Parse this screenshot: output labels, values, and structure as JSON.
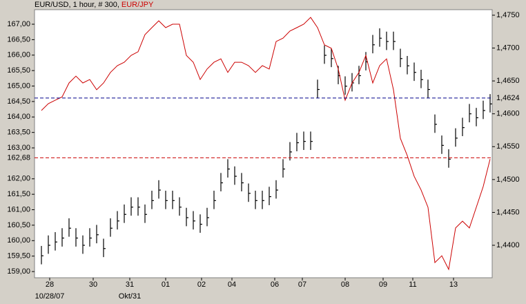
{
  "chart_data": {
    "type": "ohlc-line",
    "period_label": ", 1 hour, # 300,",
    "series": [
      {
        "name": "EUR/USD",
        "color": "#000000",
        "axis": "y2",
        "high": [
          1.4399,
          1.4415,
          1.442,
          1.4426,
          1.4441,
          1.4426,
          1.4415,
          1.4426,
          1.4431,
          1.441,
          1.4441,
          1.4452,
          1.4462,
          1.4473,
          1.4473,
          1.4462,
          1.4483,
          1.4499,
          1.4483,
          1.4483,
          1.4473,
          1.4457,
          1.4452,
          1.4447,
          1.4457,
          1.4483,
          1.451,
          1.4531,
          1.452,
          1.451,
          1.4494,
          1.4483,
          1.4483,
          1.4489,
          1.4499,
          1.4531,
          1.4557,
          1.4571,
          1.4573,
          1.4573,
          1.4652,
          1.4704,
          1.4699,
          1.4673,
          1.4657,
          1.4662,
          1.4673,
          1.4694,
          1.472,
          1.473,
          1.4725,
          1.4725,
          1.4699,
          1.4688,
          1.4678,
          1.4667,
          1.4652,
          1.4599,
          1.4567,
          1.4546,
          1.4578,
          1.4594,
          1.4615,
          1.4609,
          1.462,
          1.463
        ],
        "low": [
          1.4371,
          1.4387,
          1.4392,
          1.4398,
          1.4413,
          1.4398,
          1.4387,
          1.4398,
          1.4403,
          1.4382,
          1.4413,
          1.4424,
          1.4434,
          1.4445,
          1.4445,
          1.4434,
          1.4455,
          1.4471,
          1.4455,
          1.4455,
          1.4445,
          1.4429,
          1.4424,
          1.4419,
          1.4429,
          1.4455,
          1.4482,
          1.4503,
          1.4492,
          1.4482,
          1.4466,
          1.4455,
          1.4455,
          1.4461,
          1.4471,
          1.4503,
          1.4529,
          1.4543,
          1.4545,
          1.4545,
          1.4624,
          1.4676,
          1.4671,
          1.4645,
          1.4629,
          1.4634,
          1.4645,
          1.4666,
          1.4692,
          1.4702,
          1.4697,
          1.4697,
          1.4671,
          1.466,
          1.465,
          1.4639,
          1.4624,
          1.4571,
          1.4539,
          1.4518,
          1.455,
          1.4566,
          1.4587,
          1.4581,
          1.4592,
          1.4602
        ],
        "close": [
          1.4384,
          1.44,
          1.4405,
          1.4411,
          1.4426,
          1.4411,
          1.44,
          1.4411,
          1.4416,
          1.4395,
          1.4426,
          1.4437,
          1.4447,
          1.4458,
          1.4458,
          1.4447,
          1.4468,
          1.4484,
          1.4468,
          1.4468,
          1.4458,
          1.4442,
          1.4437,
          1.4432,
          1.4442,
          1.4468,
          1.4495,
          1.4516,
          1.4505,
          1.4495,
          1.4479,
          1.4468,
          1.4468,
          1.4474,
          1.4484,
          1.4516,
          1.4542,
          1.4556,
          1.4558,
          1.4558,
          1.4637,
          1.4689,
          1.4684,
          1.4658,
          1.4642,
          1.4647,
          1.4658,
          1.4679,
          1.4705,
          1.4715,
          1.471,
          1.471,
          1.4684,
          1.4673,
          1.4663,
          1.4652,
          1.4637,
          1.4584,
          1.4552,
          1.4531,
          1.4563,
          1.4579,
          1.46,
          1.4594,
          1.4605,
          1.4615
        ]
      },
      {
        "name": "EUR/JPY",
        "color": "#cc0000",
        "axis": "y",
        "values": [
          164.21,
          164.43,
          164.54,
          164.65,
          165.1,
          165.32,
          165.1,
          165.21,
          164.88,
          165.1,
          165.44,
          165.66,
          165.77,
          165.99,
          166.11,
          166.66,
          166.89,
          167.11,
          166.89,
          167.0,
          167.0,
          165.99,
          165.77,
          165.21,
          165.55,
          165.77,
          165.88,
          165.44,
          165.77,
          165.77,
          165.66,
          165.44,
          165.66,
          165.55,
          166.44,
          166.55,
          166.78,
          166.89,
          167.0,
          167.22,
          166.89,
          166.33,
          166.22,
          165.55,
          164.54,
          165.1,
          165.44,
          165.99,
          165.1,
          165.66,
          165.88,
          164.88,
          163.31,
          162.75,
          162.08,
          161.64,
          161.08,
          159.29,
          159.51,
          159.07,
          160.41,
          160.63,
          160.41,
          161.08,
          161.75,
          162.64
        ]
      }
    ],
    "xlim": [
      -1,
      65.3
    ],
    "xticks": [
      {
        "value": 1.2,
        "label": "28",
        "sublabel": "10/28/07"
      },
      {
        "value": 7.5,
        "label": "30"
      },
      {
        "value": 12.8,
        "label": "31",
        "sublabel": "Okt/31"
      },
      {
        "value": 18,
        "label": "01"
      },
      {
        "value": 23.2,
        "label": "02"
      },
      {
        "value": 27.6,
        "label": "04"
      },
      {
        "value": 33.8,
        "label": "06"
      },
      {
        "value": 37.8,
        "label": "07"
      },
      {
        "value": 44,
        "label": "08"
      },
      {
        "value": 49.5,
        "label": "09"
      },
      {
        "value": 53.8,
        "label": "11"
      },
      {
        "value": 59.7,
        "label": "13"
      }
    ],
    "ylim": [
      158.8,
      167.47
    ],
    "yticks": [
      {
        "value": 159,
        "label": "159,00"
      },
      {
        "value": 159.5,
        "label": "159,50"
      },
      {
        "value": 160,
        "label": "160,00"
      },
      {
        "value": 160.5,
        "label": "160,50"
      },
      {
        "value": 161,
        "label": "161,00"
      },
      {
        "value": 161.5,
        "label": "161,50"
      },
      {
        "value": 162,
        "label": "162,00"
      },
      {
        "value": 163,
        "label": "163,00"
      },
      {
        "value": 163.5,
        "label": "163,50"
      },
      {
        "value": 164,
        "label": "164,00"
      },
      {
        "value": 164.5,
        "label": "164,50"
      },
      {
        "value": 165,
        "label": "165,00"
      },
      {
        "value": 165.5,
        "label": "165,50"
      },
      {
        "value": 166,
        "label": "166,00"
      },
      {
        "value": 166.5,
        "label": "166,50"
      },
      {
        "value": 167,
        "label": "167,00"
      }
    ],
    "y2lim": [
      1.43506,
      1.47584
    ],
    "y2ticks": [
      {
        "value": 1.44,
        "label": "1,4400"
      },
      {
        "value": 1.445,
        "label": "1,4450"
      },
      {
        "value": 1.45,
        "label": "1,4500"
      },
      {
        "value": 1.455,
        "label": "1,4550"
      },
      {
        "value": 1.46,
        "label": "1,4600"
      },
      {
        "value": 1.465,
        "label": "1,4650"
      },
      {
        "value": 1.47,
        "label": "1,4700"
      },
      {
        "value": 1.475,
        "label": "1,4750"
      }
    ],
    "ref_lines": [
      {
        "value": 162.68,
        "label": "162,68",
        "axis": "y",
        "color": "#cc0000"
      },
      {
        "value": 1.4624,
        "label": "1,4624",
        "axis": "y2",
        "color": "#00008b"
      }
    ]
  }
}
